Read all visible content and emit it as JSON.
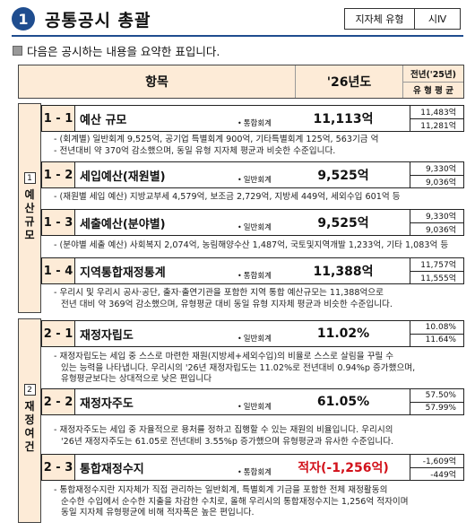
{
  "header": {
    "number": "1",
    "title": "공통공시 총괄",
    "type_label": "지자체 유형",
    "type_value": "시Ⅳ"
  },
  "intro": "다음은 공시하는 내용을 요약한 표입니다.",
  "table_header": {
    "item": "항목",
    "year": "'26년도",
    "prev_year": "전년('25년)",
    "type_avg": "유 형 평 균"
  },
  "sections": {
    "s1": {
      "num": "1",
      "chars": [
        "예",
        "산",
        "규",
        "모"
      ]
    },
    "s2": {
      "num": "2",
      "chars": [
        "재",
        "정",
        "여",
        "건"
      ]
    }
  },
  "items": {
    "i11": {
      "code": "1 - 1",
      "name": "예산 규모",
      "note": "통합회계",
      "value": "11,113억",
      "prev": "11,483억",
      "avg": "11,281억"
    },
    "i12": {
      "code": "1 - 2",
      "name": "세입예산(재원별)",
      "note": "일반회계",
      "value": "9,525억",
      "prev": "9,330억",
      "avg": "9,036억"
    },
    "i13": {
      "code": "1 - 3",
      "name": "세출예산(분야별)",
      "note": "일반회계",
      "value": "9,525억",
      "prev": "9,330억",
      "avg": "9,036억"
    },
    "i14": {
      "code": "1 - 4",
      "name": "지역통합재정통계",
      "note": "통합회계",
      "value": "11,388억",
      "prev": "11,757억",
      "avg": "11,555억"
    },
    "i21": {
      "code": "2 - 1",
      "name": "재정자립도",
      "note": "일반회계",
      "value": "11.02%",
      "prev": "10.08%",
      "avg": "11.64%"
    },
    "i22": {
      "code": "2 - 2",
      "name": "재정자주도",
      "note": "일반회계",
      "value": "61.05%",
      "prev": "57.50%",
      "avg": "57.99%"
    },
    "i23": {
      "code": "2 - 3",
      "name": "통합재정수지",
      "note": "통합회계",
      "value": "적자(-1,256억)",
      "prev": "-1,609억",
      "avg": "-449억"
    }
  },
  "descriptions": {
    "d11": [
      "- (회계별) 일반회계 9,525억, 공기업 특별회계 900억, 기타특별회계 125억, 563기금 억",
      "- 전년대비 약 370억 감소했으며, 동일 유형 지자체 평균과 비슷한 수준입니다."
    ],
    "d12": [
      "- (재원별 세입 예산) 지방교부세 4,579억, 보조금 2,729억, 지방세 449억, 세외수입 601억 등"
    ],
    "d13": [
      "- (분야별 세출 예산) 사회복지 2,074억, 농림해양수산 1,487억, 국토및지역개발 1,233억, 기타 1,083억 등"
    ],
    "d14": [
      "- 우리시 및 우리시 공사·공단, 출자·출연기관을 포함한 지역 통합 예산규모는 11,388억으로",
      "전년 대비 약 369억 감소했으며, 유형평균 대비 동일 유형 지자체 평균과 비슷한 수준입니다."
    ],
    "d21": [
      "- 재정자립도는 세입 중 스스로 마련한 재원(지방세+세외수입)의 비율로 스스로 살림을 꾸릴 수",
      "있는 능력을 나타냅니다. 우리시의 '26년 재정자립도는 11.02%로 전년대비 0.94%p 증가했으며,",
      "유형평균보다는 상대적으로 낮은 편입니다"
    ],
    "d22": [
      "- 재정자주도는 세입 중 자율적으로 용처를 정하고 집행할 수 있는 재원의 비율입니다. 우리시의",
      "'26년 재정자주도는 61.05로 전년대비 3.55%p 증가했으며 유형평균과 유사한 수준입니다."
    ],
    "d23": [
      "- 통합재정수지란 지자체가 직접 관리하는 일반회계, 특별회계 기금을 포함한 전체 재정활동의",
      "순수한 수입에서 순수한 지출을 차감한 수치로, 올해 우리시의 통합재정수지는 1,256억 적자이며",
      "동일 지자체 유형평균에 비해 적자폭은 높은 편입니다."
    ]
  }
}
